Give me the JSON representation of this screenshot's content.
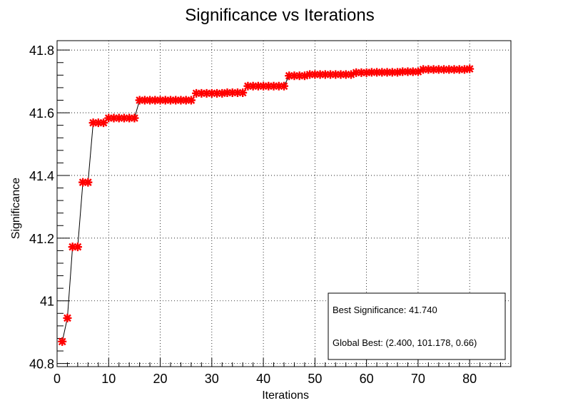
{
  "chart_data": {
    "type": "line",
    "title": "Significance vs Iterations",
    "xlabel": "Iterations",
    "ylabel": "Significance",
    "xlim": [
      0,
      88
    ],
    "ylim": [
      40.79,
      41.83
    ],
    "x_ticks": [
      0,
      10,
      20,
      30,
      40,
      50,
      60,
      70,
      80
    ],
    "y_ticks": [
      40.8,
      41,
      41.2,
      41.4,
      41.6,
      41.8
    ],
    "y_tick_labels": [
      "40.8",
      "41",
      "41.2",
      "41.4",
      "41.6",
      "41.8"
    ],
    "grid": true,
    "series": [
      {
        "name": "Significance",
        "line_color": "#000000",
        "marker": "star",
        "marker_color": "#ff0000",
        "x": [
          1,
          2,
          3,
          4,
          5,
          6,
          7,
          8,
          9,
          10,
          11,
          12,
          13,
          14,
          15,
          16,
          17,
          18,
          19,
          20,
          21,
          22,
          23,
          24,
          25,
          26,
          27,
          28,
          29,
          30,
          31,
          32,
          33,
          34,
          35,
          36,
          37,
          38,
          39,
          40,
          41,
          42,
          43,
          44,
          45,
          46,
          47,
          48,
          49,
          50,
          51,
          52,
          53,
          54,
          55,
          56,
          57,
          58,
          59,
          60,
          61,
          62,
          63,
          64,
          65,
          66,
          67,
          68,
          69,
          70,
          71,
          72,
          73,
          74,
          75,
          76,
          77,
          78,
          79,
          80
        ],
        "values": [
          40.87,
          40.945,
          41.172,
          41.172,
          41.378,
          41.378,
          41.568,
          41.568,
          41.568,
          41.583,
          41.583,
          41.583,
          41.583,
          41.583,
          41.583,
          41.64,
          41.64,
          41.64,
          41.64,
          41.64,
          41.64,
          41.64,
          41.64,
          41.64,
          41.64,
          41.64,
          41.662,
          41.662,
          41.662,
          41.662,
          41.662,
          41.662,
          41.664,
          41.664,
          41.664,
          41.664,
          41.685,
          41.685,
          41.685,
          41.685,
          41.685,
          41.685,
          41.685,
          41.685,
          41.718,
          41.718,
          41.718,
          41.718,
          41.722,
          41.722,
          41.722,
          41.722,
          41.722,
          41.722,
          41.722,
          41.722,
          41.722,
          41.728,
          41.728,
          41.728,
          41.729,
          41.729,
          41.729,
          41.729,
          41.729,
          41.729,
          41.731,
          41.731,
          41.731,
          41.731,
          41.738,
          41.738,
          41.738,
          41.738,
          41.738,
          41.738,
          41.738,
          41.738,
          41.738,
          41.74
        ]
      }
    ],
    "legend": {
      "placement": "bottom-right",
      "entries": [
        "Best Significance: 41.740",
        "Global Best: (2.400, 101.178, 0.66)"
      ]
    }
  }
}
